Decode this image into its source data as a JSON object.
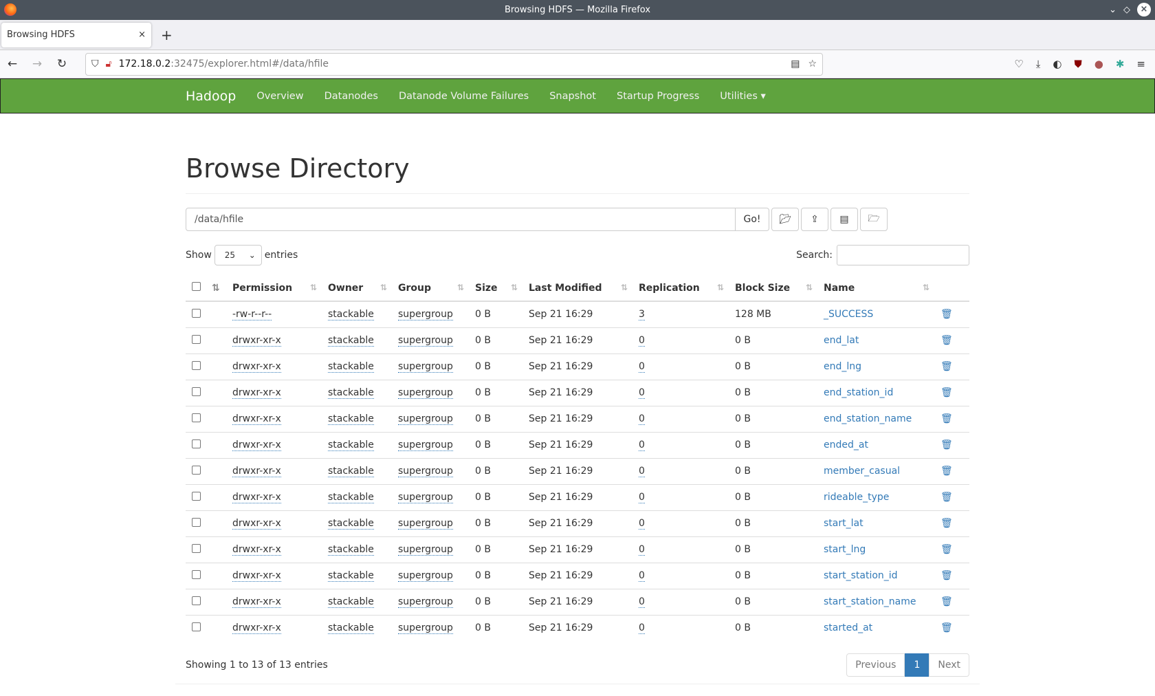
{
  "window": {
    "title": "Browsing HDFS — Mozilla Firefox"
  },
  "tab": {
    "title": "Browsing HDFS",
    "close": "×",
    "new": "+"
  },
  "url": {
    "host": "172.18.0.2",
    "rest": ":32475/explorer.html#/data/hfile"
  },
  "nav": {
    "brand": "Hadoop",
    "items": [
      "Overview",
      "Datanodes",
      "Datanode Volume Failures",
      "Snapshot",
      "Startup Progress",
      "Utilities ▾"
    ]
  },
  "page": {
    "title": "Browse Directory",
    "path": "/data/hfile",
    "go": "Go!",
    "show": "Show",
    "entries_value": "25",
    "entries": "entries",
    "search": "Search:"
  },
  "table": {
    "headers": [
      "Permission",
      "Owner",
      "Group",
      "Size",
      "Last Modified",
      "Replication",
      "Block Size",
      "Name"
    ],
    "rows": [
      [
        "-rw-r--r--",
        "stackable",
        "supergroup",
        "0 B",
        "Sep 21 16:29",
        "3",
        "128 MB",
        "_SUCCESS"
      ],
      [
        "drwxr-xr-x",
        "stackable",
        "supergroup",
        "0 B",
        "Sep 21 16:29",
        "0",
        "0 B",
        "end_lat"
      ],
      [
        "drwxr-xr-x",
        "stackable",
        "supergroup",
        "0 B",
        "Sep 21 16:29",
        "0",
        "0 B",
        "end_lng"
      ],
      [
        "drwxr-xr-x",
        "stackable",
        "supergroup",
        "0 B",
        "Sep 21 16:29",
        "0",
        "0 B",
        "end_station_id"
      ],
      [
        "drwxr-xr-x",
        "stackable",
        "supergroup",
        "0 B",
        "Sep 21 16:29",
        "0",
        "0 B",
        "end_station_name"
      ],
      [
        "drwxr-xr-x",
        "stackable",
        "supergroup",
        "0 B",
        "Sep 21 16:29",
        "0",
        "0 B",
        "ended_at"
      ],
      [
        "drwxr-xr-x",
        "stackable",
        "supergroup",
        "0 B",
        "Sep 21 16:29",
        "0",
        "0 B",
        "member_casual"
      ],
      [
        "drwxr-xr-x",
        "stackable",
        "supergroup",
        "0 B",
        "Sep 21 16:29",
        "0",
        "0 B",
        "rideable_type"
      ],
      [
        "drwxr-xr-x",
        "stackable",
        "supergroup",
        "0 B",
        "Sep 21 16:29",
        "0",
        "0 B",
        "start_lat"
      ],
      [
        "drwxr-xr-x",
        "stackable",
        "supergroup",
        "0 B",
        "Sep 21 16:29",
        "0",
        "0 B",
        "start_lng"
      ],
      [
        "drwxr-xr-x",
        "stackable",
        "supergroup",
        "0 B",
        "Sep 21 16:29",
        "0",
        "0 B",
        "start_station_id"
      ],
      [
        "drwxr-xr-x",
        "stackable",
        "supergroup",
        "0 B",
        "Sep 21 16:29",
        "0",
        "0 B",
        "start_station_name"
      ],
      [
        "drwxr-xr-x",
        "stackable",
        "supergroup",
        "0 B",
        "Sep 21 16:29",
        "0",
        "0 B",
        "started_at"
      ]
    ]
  },
  "footer": {
    "info": "Showing 1 to 13 of 13 entries",
    "prev": "Previous",
    "page": "1",
    "next": "Next"
  },
  "colors": {
    "navbar": "#5fa33e",
    "link": "#337ab7"
  }
}
